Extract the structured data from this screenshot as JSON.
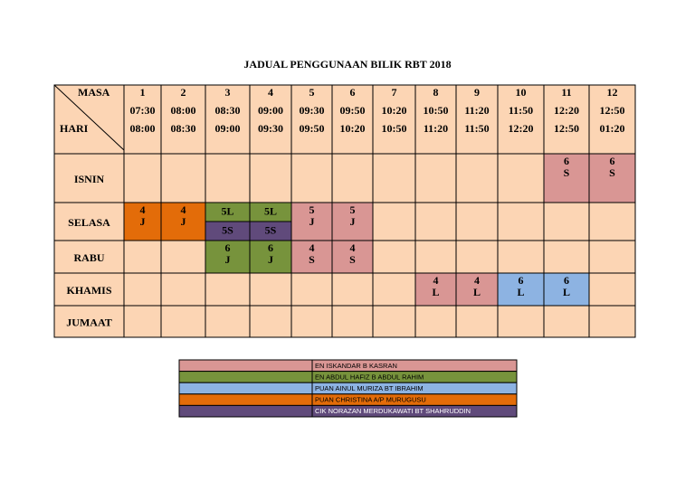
{
  "title": "JADUAL PENGGUNAAN BILIK RBT 2018",
  "header": {
    "masa": "MASA",
    "hari": "HARI"
  },
  "periods": [
    {
      "number": "1",
      "start": "07:30",
      "end": "08:00"
    },
    {
      "number": "2",
      "start": "08:00",
      "end": "08:30"
    },
    {
      "number": "3",
      "start": "08:30",
      "end": "09:00"
    },
    {
      "number": "4",
      "start": "09:00",
      "end": "09:30"
    },
    {
      "number": "5",
      "start": "09:30",
      "end": "09:50"
    },
    {
      "number": "6",
      "start": "09:50",
      "end": "10:20"
    },
    {
      "number": "7",
      "start": "10:20",
      "end": "10:50"
    },
    {
      "number": "8",
      "start": "10:50",
      "end": "11:20"
    },
    {
      "number": "9",
      "start": "11:20",
      "end": "11:50"
    },
    {
      "number": "10",
      "start": "11:50",
      "end": "12:20"
    },
    {
      "number": "11",
      "start": "12:20",
      "end": "12:50"
    },
    {
      "number": "12",
      "start": "12:50",
      "end": "01:20"
    }
  ],
  "rows": [
    {
      "day": "ISNIN",
      "cells": [
        null,
        null,
        null,
        null,
        null,
        null,
        null,
        null,
        null,
        null,
        {
          "lines": [
            "6",
            "S"
          ],
          "color": "#d99694"
        },
        {
          "lines": [
            "6",
            "S"
          ],
          "color": "#d99694"
        }
      ]
    },
    {
      "day": "SELASA",
      "cells": [
        {
          "lines": [
            "4",
            "J"
          ],
          "color": "#e36c09"
        },
        {
          "lines": [
            "4",
            "J"
          ],
          "color": "#e36c09"
        },
        {
          "parts": [
            {
              "text": "5L",
              "color": "#77933c"
            },
            {
              "text": "5S",
              "color": "#604a7b"
            }
          ]
        },
        {
          "parts": [
            {
              "text": "5L",
              "color": "#77933c"
            },
            {
              "text": "5S",
              "color": "#604a7b"
            }
          ]
        },
        {
          "lines": [
            "5",
            "J"
          ],
          "color": "#d99694"
        },
        {
          "lines": [
            "5",
            "J"
          ],
          "color": "#d99694"
        },
        null,
        null,
        null,
        null,
        null,
        null
      ]
    },
    {
      "day": "RABU",
      "cells": [
        null,
        null,
        {
          "lines": [
            "6",
            "J"
          ],
          "color": "#77933c"
        },
        {
          "lines": [
            "6",
            "J"
          ],
          "color": "#77933c"
        },
        {
          "lines": [
            "4",
            "S"
          ],
          "color": "#d99694"
        },
        {
          "lines": [
            "4",
            "S"
          ],
          "color": "#d99694"
        },
        null,
        null,
        null,
        null,
        null,
        null
      ]
    },
    {
      "day": "KHAMIS",
      "cells": [
        null,
        null,
        null,
        null,
        null,
        null,
        null,
        {
          "lines": [
            "4",
            "L"
          ],
          "color": "#d99694"
        },
        {
          "lines": [
            "4",
            "L"
          ],
          "color": "#d99694"
        },
        {
          "lines": [
            "6",
            "L"
          ],
          "color": "#8db3e2"
        },
        {
          "lines": [
            "6",
            "L"
          ],
          "color": "#8db3e2"
        },
        null
      ]
    },
    {
      "day": "JUMAAT",
      "cells": [
        null,
        null,
        null,
        null,
        null,
        null,
        null,
        null,
        null,
        null,
        null,
        null
      ]
    }
  ],
  "legend": [
    {
      "name": "EN ISKANDAR B KASRAN",
      "color": "#d99694"
    },
    {
      "name": "EN ABDUL HAFIZ B ABDUL RAHIM",
      "color": "#77933c"
    },
    {
      "name": "PUAN AINUL MURIZA BT IBRAHIM",
      "color": "#8db3e2"
    },
    {
      "name": "PUAN CHRISTINA A/P MURUGUSU",
      "color": "#e36c09"
    },
    {
      "name": "CIK NORAZAN MERDUKAWATI BT SHAHRUDDIN",
      "color": "#604a7b"
    }
  ]
}
